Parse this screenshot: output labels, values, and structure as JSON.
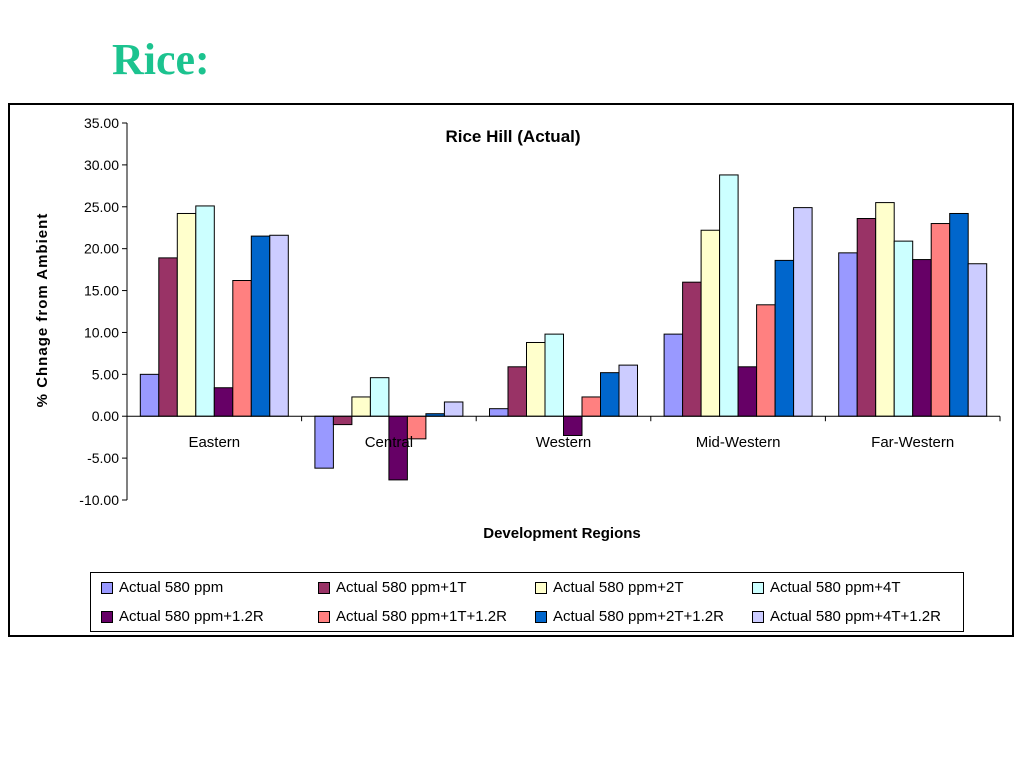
{
  "slide": {
    "title": "Rice:"
  },
  "chart_data": {
    "type": "bar",
    "title": "Rice Hill (Actual)",
    "xlabel": "Development Regions",
    "ylabel": "% Chnage from Ambient",
    "ylim": [
      -10,
      35
    ],
    "y_ticks": [
      "35.00",
      "30.00",
      "25.00",
      "20.00",
      "15.00",
      "10.00",
      "5.00",
      "0.00",
      "-5.00",
      "-10.00"
    ],
    "grid": false,
    "legend_position": "bottom",
    "categories": [
      "Eastern",
      "Central",
      "Western",
      "Mid-Western",
      "Far-Western"
    ],
    "series": [
      {
        "name": "Actual 580 ppm",
        "color": "#9999ff",
        "values": [
          5.0,
          -6.2,
          0.9,
          9.8,
          19.5
        ]
      },
      {
        "name": "Actual 580 ppm+1T",
        "color": "#993366",
        "values": [
          18.9,
          -1.0,
          5.9,
          16.0,
          23.6
        ]
      },
      {
        "name": "Actual 580 ppm+2T",
        "color": "#ffffcc",
        "values": [
          24.2,
          2.3,
          8.8,
          22.2,
          25.5
        ]
      },
      {
        "name": "Actual 580 ppm+4T",
        "color": "#ccffff",
        "values": [
          25.1,
          4.6,
          9.8,
          28.8,
          20.9
        ]
      },
      {
        "name": "Actual 580 ppm+1.2R",
        "color": "#660066",
        "values": [
          3.4,
          -7.6,
          -2.3,
          5.9,
          18.7
        ]
      },
      {
        "name": "Actual 580 ppm+1T+1.2R",
        "color": "#ff8080",
        "values": [
          16.2,
          -2.7,
          2.3,
          13.3,
          23.0
        ]
      },
      {
        "name": "Actual 580 ppm+2T+1.2R",
        "color": "#0066cc",
        "values": [
          21.5,
          0.3,
          5.2,
          18.6,
          24.2
        ]
      },
      {
        "name": "Actual 580 ppm+4T+1.2R",
        "color": "#ccccff",
        "values": [
          21.6,
          1.7,
          6.1,
          24.9,
          18.2
        ]
      }
    ]
  }
}
